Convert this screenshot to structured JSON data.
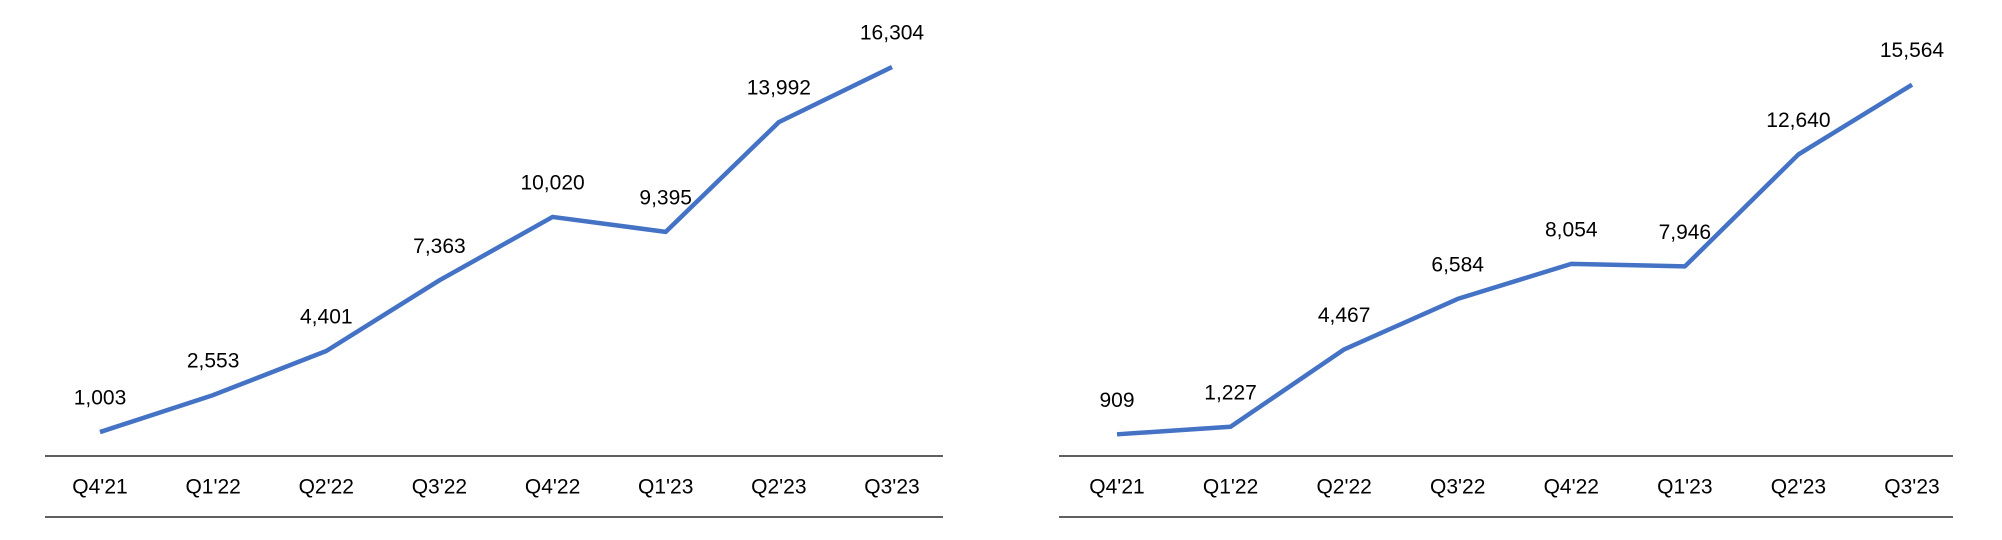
{
  "chart_data": [
    {
      "type": "line",
      "color": "#4472c4",
      "categories": [
        "Q4'21",
        "Q1'22",
        "Q2'22",
        "Q3'22",
        "Q4'22",
        "Q1'23",
        "Q2'23",
        "Q3'23"
      ],
      "values": [
        1003,
        2553,
        4401,
        7363,
        10020,
        9395,
        13992,
        16304
      ],
      "value_labels": [
        "1,003",
        "2,553",
        "4,401",
        "7,363",
        "10,020",
        "9,395",
        "13,992",
        "16,304"
      ]
    },
    {
      "type": "line",
      "color": "#4472c4",
      "categories": [
        "Q4'21",
        "Q1'22",
        "Q2'22",
        "Q3'22",
        "Q4'22",
        "Q1'23",
        "Q2'23",
        "Q3'23"
      ],
      "values": [
        909,
        1227,
        4467,
        6584,
        8054,
        7946,
        12640,
        15564
      ],
      "value_labels": [
        "909",
        "1,227",
        "4,467",
        "6,584",
        "8,054",
        "7,946",
        "12,640",
        "15,564"
      ]
    }
  ]
}
